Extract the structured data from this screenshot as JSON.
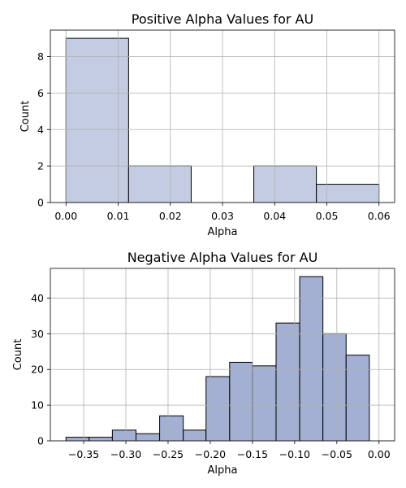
{
  "chart_data": [
    {
      "type": "bar",
      "title": "Positive Alpha Values for AU",
      "xlabel": "Alpha",
      "ylabel": "Count",
      "color": "#c3cce1",
      "grid": true,
      "xlim": [
        -0.003,
        0.063
      ],
      "ylim": [
        0,
        9.45
      ],
      "xticks": [
        0.0,
        0.01,
        0.02,
        0.03,
        0.04,
        0.05,
        0.06
      ],
      "xtick_labels": [
        "0.00",
        "0.01",
        "0.02",
        "0.03",
        "0.04",
        "0.05",
        "0.06"
      ],
      "yticks": [
        0,
        2,
        4,
        6,
        8
      ],
      "ytick_labels": [
        "0",
        "2",
        "4",
        "6",
        "8"
      ],
      "bins": [
        {
          "x0": 0.0,
          "x1": 0.012,
          "count": 9
        },
        {
          "x0": 0.012,
          "x1": 0.024,
          "count": 2
        },
        {
          "x0": 0.024,
          "x1": 0.036,
          "count": 0
        },
        {
          "x0": 0.036,
          "x1": 0.048,
          "count": 2
        },
        {
          "x0": 0.048,
          "x1": 0.06,
          "count": 1
        }
      ]
    },
    {
      "type": "bar",
      "title": "Negative Alpha Values for AU",
      "xlabel": "Alpha",
      "ylabel": "Count",
      "color": "#a3b0d3",
      "grid": true,
      "xlim": [
        -0.3895,
        0.0185
      ],
      "ylim": [
        0,
        48.3
      ],
      "xticks": [
        -0.35,
        -0.3,
        -0.25,
        -0.2,
        -0.15,
        -0.1,
        -0.05,
        0.0
      ],
      "xtick_labels": [
        "−0.35",
        "−0.30",
        "−0.25",
        "−0.20",
        "−0.15",
        "−0.10",
        "−0.05",
        "0.00"
      ],
      "yticks": [
        0,
        10,
        20,
        30,
        40
      ],
      "ytick_labels": [
        "0",
        "10",
        "20",
        "30",
        "40"
      ],
      "bins": [
        {
          "x0": -0.371,
          "x1": -0.3435,
          "count": 1
        },
        {
          "x0": -0.3435,
          "x1": -0.316,
          "count": 1
        },
        {
          "x0": -0.316,
          "x1": -0.288,
          "count": 3
        },
        {
          "x0": -0.288,
          "x1": -0.26,
          "count": 2
        },
        {
          "x0": -0.26,
          "x1": -0.232,
          "count": 7
        },
        {
          "x0": -0.232,
          "x1": -0.205,
          "count": 3
        },
        {
          "x0": -0.205,
          "x1": -0.177,
          "count": 18
        },
        {
          "x0": -0.177,
          "x1": -0.15,
          "count": 22
        },
        {
          "x0": -0.15,
          "x1": -0.122,
          "count": 21
        },
        {
          "x0": -0.122,
          "x1": -0.094,
          "count": 33
        },
        {
          "x0": -0.094,
          "x1": -0.0665,
          "count": 46
        },
        {
          "x0": -0.0665,
          "x1": -0.039,
          "count": 30
        },
        {
          "x0": -0.039,
          "x1": -0.0115,
          "count": 24
        }
      ]
    }
  ]
}
